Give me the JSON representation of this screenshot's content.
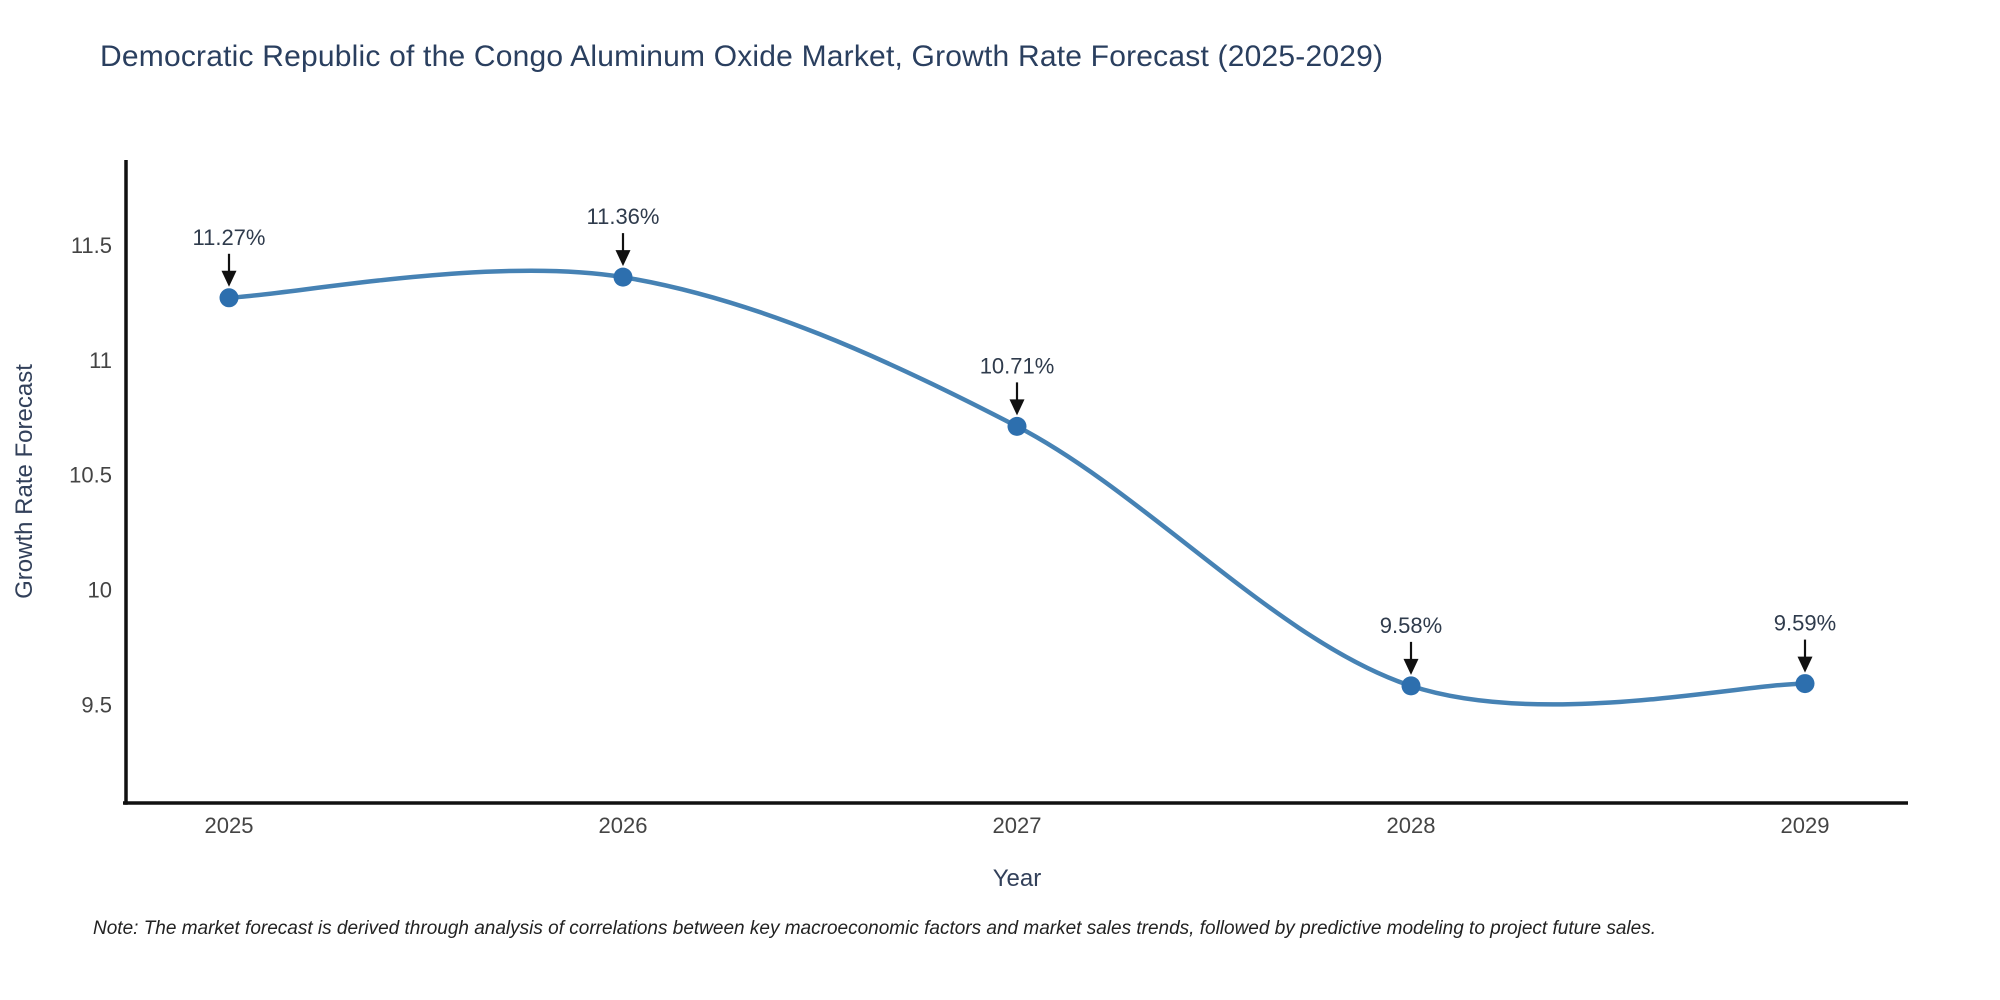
{
  "chart_data": {
    "type": "line",
    "title": "Democratic Republic of the Congo Aluminum Oxide Market, Growth Rate Forecast (2025-2029)",
    "xlabel": "Year",
    "ylabel": "Growth Rate Forecast",
    "categories": [
      "2025",
      "2026",
      "2027",
      "2028",
      "2029"
    ],
    "series": [
      {
        "name": "Growth Rate Forecast",
        "values": [
          11.27,
          11.36,
          10.71,
          9.58,
          9.59
        ]
      }
    ],
    "point_labels": [
      "11.27%",
      "11.36%",
      "10.71%",
      "9.58%",
      "9.59%"
    ],
    "y_ticks": [
      11.5,
      11,
      10.5,
      10,
      9.5
    ],
    "ylim": [
      9.07,
      11.87
    ],
    "line_shape": "spline",
    "grid": false,
    "legend": "none",
    "colors": {
      "line": "#4682b4",
      "marker": "#2d6fae",
      "arrow": "#111111",
      "axis_line": "#111111",
      "title": "#2a3f5f",
      "axis_title": "#32405a",
      "tick": "#444444"
    }
  },
  "note": {
    "text": "Note: The market forecast is derived through analysis of correlations between key macroeconomic factors and market sales trends, followed by predictive modeling to project future sales."
  }
}
